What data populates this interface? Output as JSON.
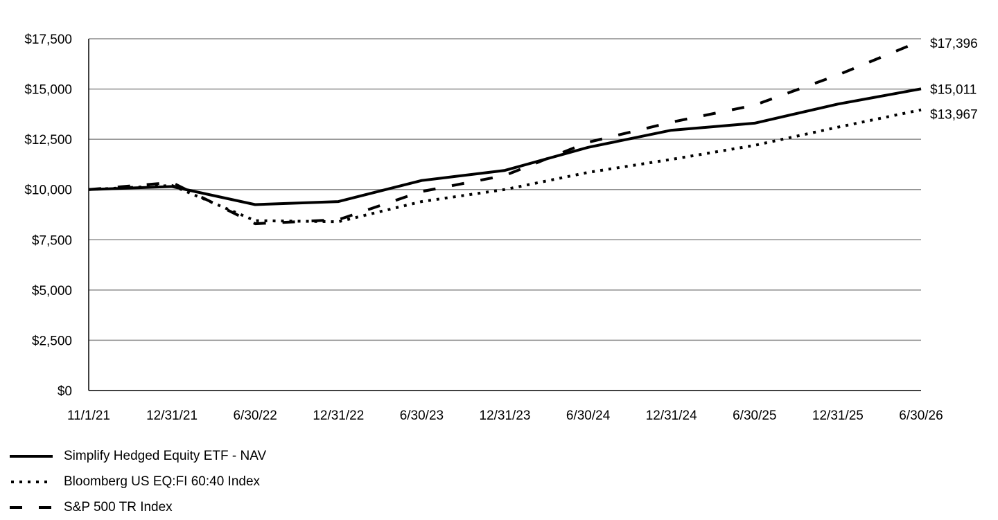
{
  "chart_data": {
    "type": "line",
    "x": [
      "11/1/21",
      "12/31/21",
      "6/30/22",
      "12/31/22",
      "6/30/23",
      "12/31/23",
      "6/30/24",
      "12/31/24",
      "6/30/25",
      "12/31/25",
      "6/30/26"
    ],
    "y_ticks": [
      "$0",
      "$2,500",
      "$5,000",
      "$7,500",
      "$10,000",
      "$12,500",
      "$15,000",
      "$17,500"
    ],
    "ylim": [
      0,
      17500
    ],
    "grid": true,
    "legend_position": "bottom-left",
    "series": [
      {
        "name": "Simplify Hedged Equity ETF - NAV",
        "style": "solid",
        "values": [
          10000,
          10150,
          9250,
          9400,
          10450,
          10950,
          12100,
          12950,
          13300,
          14250,
          15011
        ],
        "end_label": "$15,011"
      },
      {
        "name": "Bloomberg US EQ:FI 60:40 Index",
        "style": "dotted",
        "values": [
          10000,
          10200,
          8450,
          8400,
          9400,
          10000,
          10850,
          11500,
          12200,
          13100,
          13967
        ],
        "end_label": "$13,967"
      },
      {
        "name": "S&P 500 TR Index",
        "style": "dashed",
        "values": [
          10000,
          10350,
          8300,
          8500,
          9900,
          10700,
          12350,
          13350,
          14200,
          15700,
          17396
        ],
        "end_label": "$17,396"
      }
    ],
    "colors": {
      "line": "#000000",
      "grid": "#8c8c8c",
      "axis": "#000000"
    }
  }
}
